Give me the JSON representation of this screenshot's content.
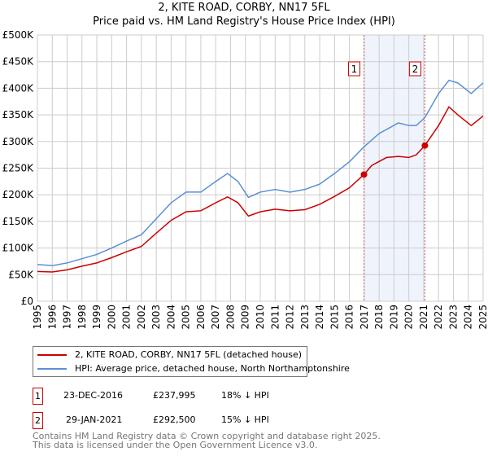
{
  "title": "2, KITE ROAD, CORBY, NN17 5FL",
  "subtitle": "Price paid vs. HM Land Registry's House Price Index (HPI)",
  "chart_data": {
    "type": "line",
    "xlim": [
      1995,
      2025
    ],
    "ylim": [
      0,
      500000
    ],
    "yticks": [
      0,
      50000,
      100000,
      150000,
      200000,
      250000,
      300000,
      350000,
      400000,
      450000,
      500000
    ],
    "ytick_labels": [
      "£0",
      "£50K",
      "£100K",
      "£150K",
      "£200K",
      "£250K",
      "£300K",
      "£350K",
      "£400K",
      "£450K",
      "£500K"
    ],
    "xticks": [
      1995,
      1996,
      1997,
      1998,
      1999,
      2000,
      2001,
      2002,
      2003,
      2004,
      2005,
      2006,
      2007,
      2008,
      2009,
      2010,
      2011,
      2012,
      2013,
      2014,
      2015,
      2016,
      2017,
      2018,
      2019,
      2020,
      2021,
      2022,
      2023,
      2024,
      2025
    ],
    "grid": true,
    "shaded_region": [
      2016.98,
      2021.08
    ],
    "series": [
      {
        "name": "2, KITE ROAD, CORBY, NN17 5FL (detached house)",
        "color": "#cc0000",
        "x": [
          1995,
          1996,
          1997,
          1998,
          1999,
          2000,
          2001,
          2002,
          2003,
          2004,
          2005,
          2006,
          2007,
          2007.8,
          2008.5,
          2009.2,
          2010,
          2011,
          2012,
          2013,
          2014,
          2015,
          2016,
          2016.98,
          2017.5,
          2018.5,
          2019.3,
          2020,
          2020.5,
          2021.08,
          2022,
          2022.7,
          2023.3,
          2024.2,
          2025
        ],
        "y": [
          56000,
          55000,
          59000,
          66000,
          72000,
          82000,
          93000,
          103000,
          128000,
          152000,
          168000,
          170000,
          185000,
          196000,
          185000,
          160000,
          168000,
          173000,
          170000,
          172000,
          182000,
          197000,
          213000,
          237995,
          255000,
          270000,
          272000,
          270000,
          275000,
          292500,
          330000,
          365000,
          350000,
          330000,
          348000
        ]
      },
      {
        "name": "HPI: Average price, detached house, North Northamptonshire",
        "color": "#5b8fd4",
        "x": [
          1995,
          1996,
          1997,
          1998,
          1999,
          2000,
          2001,
          2002,
          2003,
          2004,
          2005,
          2006,
          2007,
          2007.8,
          2008.5,
          2009.2,
          2010,
          2011,
          2012,
          2013,
          2014,
          2015,
          2016,
          2016.98,
          2018,
          2019.3,
          2020,
          2020.5,
          2021.08,
          2022,
          2022.7,
          2023.3,
          2024.2,
          2025
        ],
        "y": [
          69000,
          67000,
          72000,
          80000,
          88000,
          100000,
          113000,
          125000,
          155000,
          185000,
          205000,
          205000,
          225000,
          240000,
          225000,
          195000,
          205000,
          210000,
          205000,
          210000,
          220000,
          240000,
          262000,
          290000,
          315000,
          335000,
          330000,
          330000,
          345000,
          390000,
          415000,
          410000,
          390000,
          410000
        ]
      }
    ],
    "sales": [
      {
        "label": "1",
        "x": 2016.98,
        "y": 237995
      },
      {
        "label": "2",
        "x": 2021.08,
        "y": 292500
      }
    ]
  },
  "legend": [
    "2, KITE ROAD, CORBY, NN17 5FL (detached house)",
    "HPI: Average price, detached house, North Northamptonshire"
  ],
  "transactions": [
    {
      "num": "1",
      "date": "23-DEC-2016",
      "price": "£237,995",
      "hpi": "18% ↓ HPI"
    },
    {
      "num": "2",
      "date": "29-JAN-2021",
      "price": "£292,500",
      "hpi": "15% ↓ HPI"
    }
  ],
  "footer": [
    "Contains HM Land Registry data © Crown copyright and database right 2025.",
    "This data is licensed under the Open Government Licence v3.0."
  ]
}
